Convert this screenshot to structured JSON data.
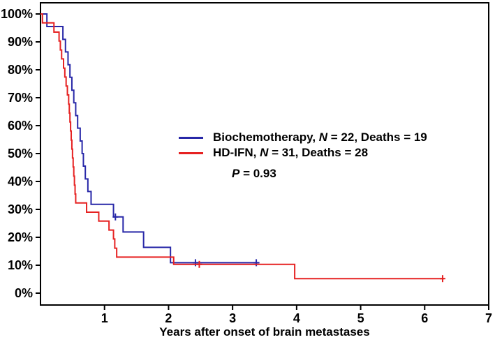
{
  "figure": {
    "x_axis_title": "Years after onset of brain metastases"
  },
  "legend": {
    "items": [
      {
        "label_name": "Biochemotherapy",
        "separator": ", ",
        "n_symbol": "N",
        "n_rest": " = 22, Deaths = 19"
      },
      {
        "label_name": "HD-IFN",
        "separator": ", ",
        "n_symbol": "N",
        "n_rest": " = 31, Deaths = 28"
      }
    ],
    "p_symbol": "P",
    "p_rest": " = 0.93"
  },
  "colors": {
    "biochemotherapy": "#2828a8",
    "hd_ifn": "#e62222",
    "axis": "#000000",
    "background": "#ffffff"
  },
  "chart_data": {
    "type": "line",
    "subtype": "kaplan-meier-step",
    "title": "",
    "xlabel": "Years after onset of brain metastases",
    "ylabel": "",
    "xlim": [
      0,
      7
    ],
    "ylim": [
      0,
      100
    ],
    "xticks": [
      1,
      2,
      3,
      4,
      5,
      6,
      7
    ],
    "yticks": [
      0,
      10,
      20,
      30,
      40,
      50,
      60,
      70,
      80,
      90,
      100
    ],
    "ytick_labels": [
      "0%",
      "10%",
      "20%",
      "30%",
      "40%",
      "50%",
      "60%",
      "70%",
      "80%",
      "90%",
      "100%"
    ],
    "grid": false,
    "legend_position": "center-right-inside",
    "p_value": "0.93",
    "series": [
      {
        "name": "Biochemotherapy",
        "n": 22,
        "deaths": 19,
        "color_key": "biochemotherapy",
        "points": [
          [
            0,
            100
          ],
          [
            0.1,
            95.5
          ],
          [
            0.35,
            90.9
          ],
          [
            0.39,
            86.4
          ],
          [
            0.43,
            81.8
          ],
          [
            0.46,
            77.3
          ],
          [
            0.49,
            72.7
          ],
          [
            0.52,
            68.2
          ],
          [
            0.55,
            63.6
          ],
          [
            0.58,
            59.1
          ],
          [
            0.62,
            54.5
          ],
          [
            0.65,
            50.0
          ],
          [
            0.67,
            45.5
          ],
          [
            0.7,
            40.9
          ],
          [
            0.74,
            36.4
          ],
          [
            0.79,
            31.8
          ],
          [
            1.14,
            27.3
          ],
          [
            1.29,
            21.9
          ],
          [
            1.61,
            16.4
          ],
          [
            2.03,
            10.9
          ]
        ],
        "end_time": 3.42,
        "censored": [
          [
            1.17,
            27.3
          ],
          [
            2.42,
            10.9
          ],
          [
            3.37,
            10.9
          ]
        ]
      },
      {
        "name": "HD-IFN",
        "n": 31,
        "deaths": 28,
        "color_key": "hd_ifn",
        "points": [
          [
            0,
            100
          ],
          [
            0.03,
            96.8
          ],
          [
            0.21,
            93.5
          ],
          [
            0.29,
            90.3
          ],
          [
            0.31,
            87.1
          ],
          [
            0.33,
            83.9
          ],
          [
            0.36,
            80.6
          ],
          [
            0.38,
            77.4
          ],
          [
            0.4,
            74.2
          ],
          [
            0.42,
            71.0
          ],
          [
            0.44,
            67.7
          ],
          [
            0.45,
            64.5
          ],
          [
            0.46,
            61.3
          ],
          [
            0.47,
            58.1
          ],
          [
            0.48,
            54.8
          ],
          [
            0.49,
            51.6
          ],
          [
            0.5,
            48.4
          ],
          [
            0.51,
            45.2
          ],
          [
            0.52,
            41.9
          ],
          [
            0.53,
            38.7
          ],
          [
            0.54,
            35.5
          ],
          [
            0.55,
            32.3
          ],
          [
            0.72,
            29.0
          ],
          [
            0.91,
            25.8
          ],
          [
            1.07,
            22.6
          ],
          [
            1.14,
            19.4
          ],
          [
            1.16,
            16.1
          ],
          [
            1.19,
            12.9
          ],
          [
            2.08,
            10.3
          ],
          [
            3.97,
            5.2
          ]
        ],
        "end_time": 6.3,
        "censored": [
          [
            2.48,
            10.3
          ],
          [
            6.28,
            5.2
          ]
        ]
      }
    ]
  }
}
